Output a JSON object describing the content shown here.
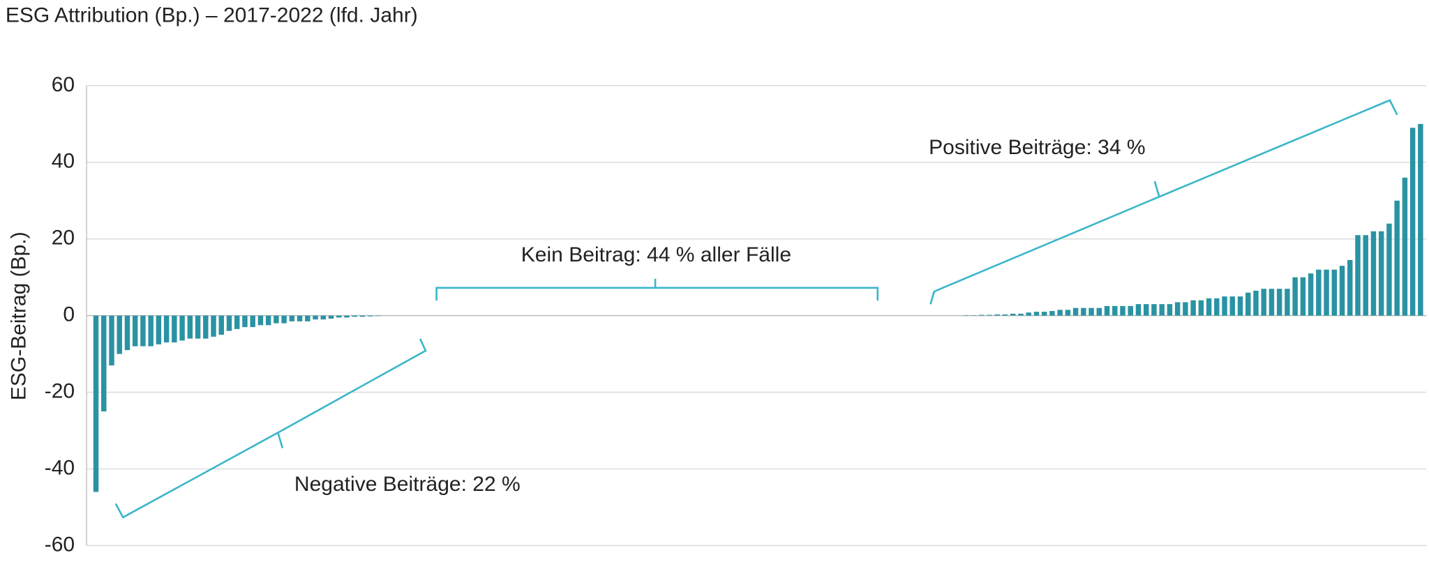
{
  "chart_data": {
    "type": "bar",
    "title": "ESG Attribution (Bp.) – 2017-2022 (lfd. Jahr)",
    "y_label": "ESG-Beitrag (Bp.)",
    "color": "#2a93a3",
    "values": [
      -46,
      -25,
      -13,
      -10,
      -9,
      -8,
      -8,
      -8,
      -7.5,
      -7,
      -7,
      -6.5,
      -6,
      -6,
      -6,
      -5.5,
      -5,
      -4,
      -3.5,
      -3,
      -3,
      -2.5,
      -2.5,
      -2,
      -2,
      -1.5,
      -1.5,
      -1.5,
      -1,
      -1,
      -0.8,
      -0.5,
      -0.5,
      -0.3,
      -0.3,
      -0.2,
      -0.1,
      0,
      0,
      0,
      0,
      0,
      0,
      0,
      0,
      0,
      0,
      0,
      0,
      0,
      0,
      0,
      0,
      0,
      0,
      0,
      0,
      0,
      0,
      0,
      0,
      0,
      0,
      0,
      0,
      0,
      0,
      0,
      0,
      0,
      0,
      0,
      0,
      0,
      0,
      0,
      0,
      0,
      0,
      0,
      0,
      0,
      0,
      0,
      0,
      0,
      0,
      0,
      0,
      0,
      0,
      0,
      0,
      0,
      0,
      0,
      0,
      0,
      0,
      0,
      0,
      0,
      0,
      0,
      0,
      0,
      0,
      0,
      0,
      0,
      0,
      0.1,
      0.1,
      0.2,
      0.2,
      0.3,
      0.3,
      0.5,
      0.5,
      0.8,
      1,
      1,
      1.2,
      1.5,
      1.5,
      2,
      2,
      2,
      2,
      2.5,
      2.5,
      2.5,
      2.5,
      3,
      3,
      3,
      3,
      3,
      3.5,
      3.5,
      4,
      4,
      4.5,
      4.5,
      5,
      5,
      5,
      6,
      6.5,
      7,
      7,
      7,
      7,
      10,
      10,
      11,
      12,
      12,
      12,
      13,
      14.5,
      21,
      21,
      22,
      22,
      24,
      30,
      36,
      49,
      50
    ],
    "ylim": [
      -60,
      60
    ],
    "yticks": [
      -60,
      -40,
      -20,
      0,
      20,
      40,
      60
    ],
    "grid": true,
    "annotations": [
      "Positive Beiträge: 34 %",
      "Kein Beitrag: 44 % aller Fälle",
      "Negative Beiträge: 22 %"
    ]
  }
}
